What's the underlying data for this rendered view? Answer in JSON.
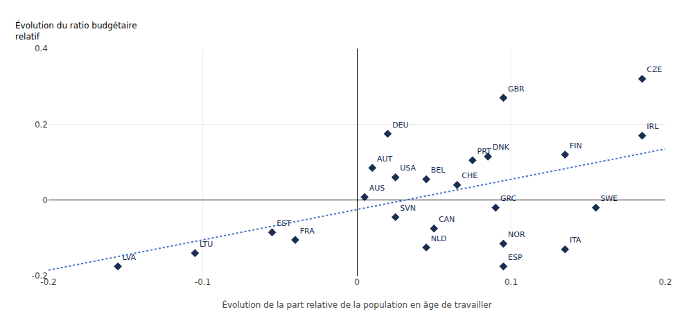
{
  "chart_data": {
    "type": "scatter",
    "xlabel": "Évolution de la part relative de la population en âge de travailler",
    "ylabel": [
      "Évolution du ratio budgétaire",
      "relatif"
    ],
    "series": [
      {
        "type": "scatter",
        "color": "#1a2e52",
        "marker": "diamond",
        "labels": [
          "LVA",
          "LTU",
          "EST",
          "FRA",
          "AUS",
          "AUT",
          "DEU",
          "USA",
          "SVN",
          "BEL",
          "CAN",
          "NLD",
          "CHE",
          "PRT",
          "DNK",
          "GRC",
          "ESP",
          "NOR",
          "GBR",
          "FIN",
          "ITA",
          "SWE",
          "IRL",
          "CZE"
        ],
        "x": [
          -0.155,
          -0.105,
          -0.055,
          -0.04,
          0.005,
          0.01,
          0.02,
          0.025,
          0.025,
          0.045,
          0.05,
          0.045,
          0.065,
          0.075,
          0.085,
          0.09,
          0.095,
          0.095,
          0.095,
          0.135,
          0.135,
          0.155,
          0.185,
          0.185
        ],
        "values": [
          -0.175,
          -0.14,
          -0.085,
          -0.105,
          0.008,
          0.085,
          0.175,
          0.06,
          -0.045,
          0.055,
          -0.075,
          -0.125,
          0.04,
          0.105,
          0.115,
          -0.02,
          -0.175,
          -0.115,
          0.27,
          0.12,
          -0.13,
          -0.02,
          0.17,
          0.32
        ]
      },
      {
        "type": "line",
        "color": "#4472c4",
        "line_style": "dotted",
        "x": [
          -0.2,
          0.2
        ],
        "values": [
          -0.185,
          0.135
        ]
      }
    ],
    "xlim": [
      -0.2,
      0.2
    ],
    "ylim": [
      -0.2,
      0.4
    ],
    "xticks": [
      -0.2,
      -0.1,
      0,
      0.1,
      0.2
    ],
    "yticks": [
      -0.2,
      0,
      0.2,
      0.4
    ],
    "grid": true
  }
}
